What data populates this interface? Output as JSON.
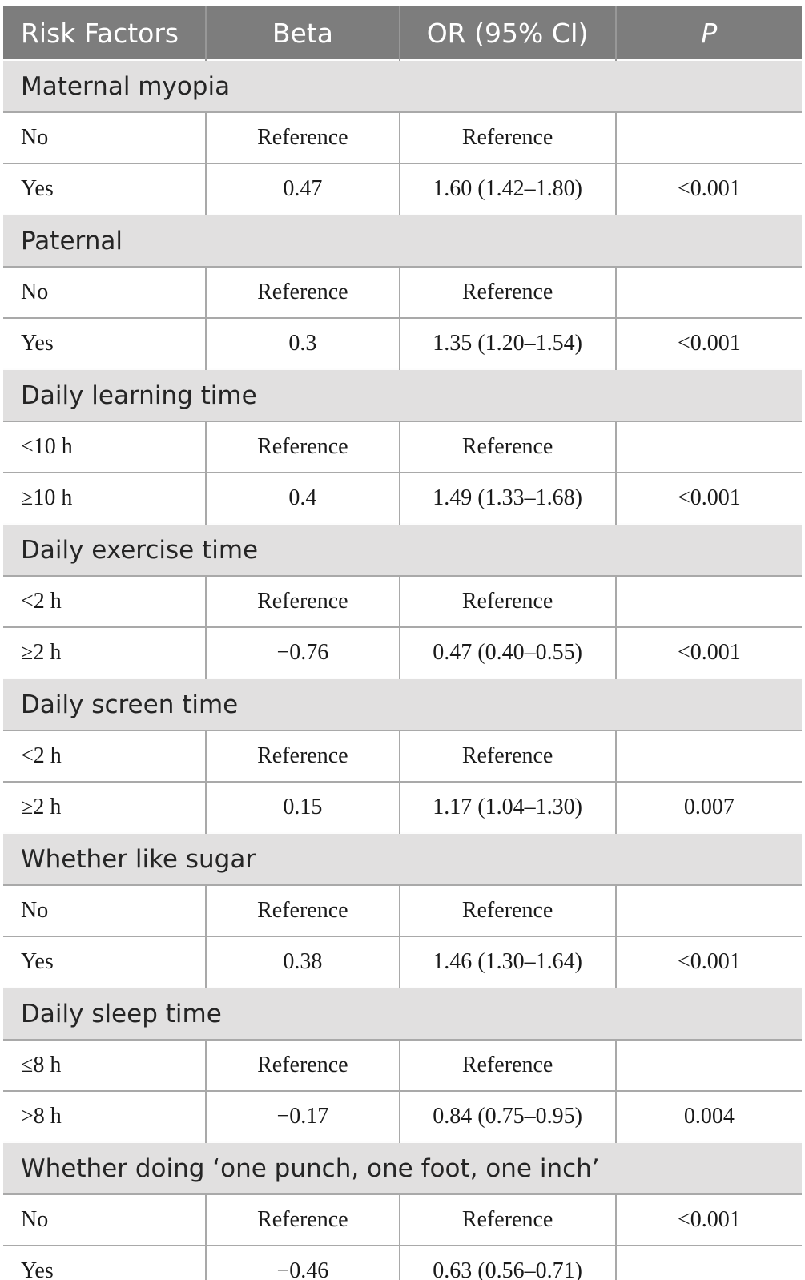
{
  "table": {
    "columns": [
      "Risk Factors",
      "Beta",
      "OR (95% CI)",
      "P"
    ],
    "sections": [
      {
        "title": "Maternal myopia",
        "rows": [
          {
            "label": "No",
            "beta": "Reference",
            "or_ci": "Reference",
            "p": ""
          },
          {
            "label": "Yes",
            "beta": "0.47",
            "or_ci": "1.60 (1.42–1.80)",
            "p": "<0.001"
          }
        ]
      },
      {
        "title": "Paternal",
        "rows": [
          {
            "label": "No",
            "beta": "Reference",
            "or_ci": "Reference",
            "p": ""
          },
          {
            "label": "Yes",
            "beta": "0.3",
            "or_ci": "1.35 (1.20–1.54)",
            "p": "<0.001"
          }
        ]
      },
      {
        "title": "Daily learning time",
        "rows": [
          {
            "label": "<10 h",
            "beta": "Reference",
            "or_ci": "Reference",
            "p": ""
          },
          {
            "label": "≥10 h",
            "beta": "0.4",
            "or_ci": "1.49 (1.33–1.68)",
            "p": "<0.001"
          }
        ]
      },
      {
        "title": "Daily exercise time",
        "rows": [
          {
            "label": "<2 h",
            "beta": "Reference",
            "or_ci": "Reference",
            "p": ""
          },
          {
            "label": "≥2 h",
            "beta": "−0.76",
            "or_ci": "0.47 (0.40–0.55)",
            "p": "<0.001"
          }
        ]
      },
      {
        "title": "Daily screen time",
        "rows": [
          {
            "label": "<2 h",
            "beta": "Reference",
            "or_ci": "Reference",
            "p": ""
          },
          {
            "label": "≥2 h",
            "beta": "0.15",
            "or_ci": "1.17 (1.04–1.30)",
            "p": "0.007"
          }
        ]
      },
      {
        "title": "Whether like sugar",
        "rows": [
          {
            "label": "No",
            "beta": "Reference",
            "or_ci": "Reference",
            "p": ""
          },
          {
            "label": "Yes",
            "beta": "0.38",
            "or_ci": "1.46 (1.30–1.64)",
            "p": "<0.001"
          }
        ]
      },
      {
        "title": "Daily sleep time",
        "rows": [
          {
            "label": "≤8 h",
            "beta": "Reference",
            "or_ci": "Reference",
            "p": ""
          },
          {
            "label": ">8 h",
            "beta": "−0.17",
            "or_ci": "0.84 (0.75–0.95)",
            "p": "0.004"
          }
        ]
      },
      {
        "title": "Whether doing ‘one punch, one foot, one inch’",
        "rows": [
          {
            "label": "No",
            "beta": "Reference",
            "or_ci": "Reference",
            "p": "<0.001"
          },
          {
            "label": "Yes",
            "beta": "−0.46",
            "or_ci": "0.63 (0.56–0.71)",
            "p": ""
          }
        ]
      }
    ]
  },
  "colors": {
    "header_background": "#7d7d7d",
    "header_text": "#ffffff",
    "section_band_background": "#e1e0e0",
    "grid_line": "#a9a9a9",
    "data_text": "#1a1a1a"
  }
}
